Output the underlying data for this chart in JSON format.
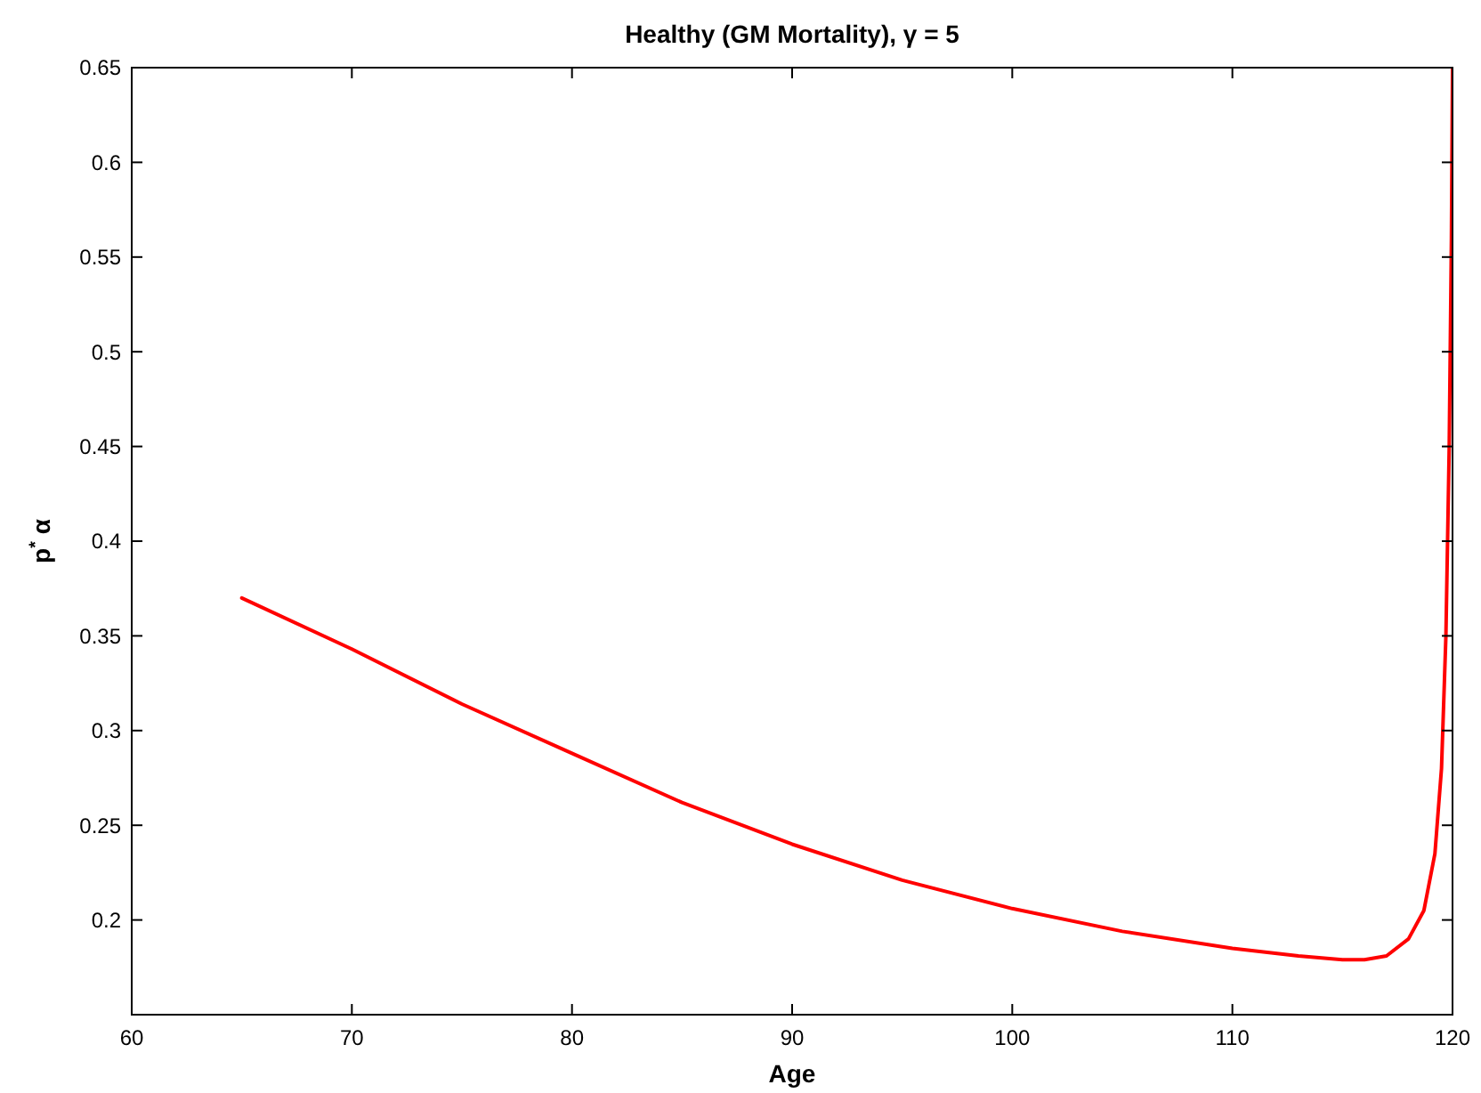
{
  "chart_data": {
    "type": "line",
    "title": "Healthy (GM Mortality), γ = 5",
    "xlabel": "Age",
    "ylabel": "p$^{*}$ α",
    "xlim": [
      60,
      120
    ],
    "xticks": [
      60,
      70,
      80,
      90,
      100,
      110,
      120
    ],
    "ylim": [
      0.15,
      0.65
    ],
    "yticks": [
      0.2,
      0.25,
      0.3,
      0.35,
      0.4,
      0.45,
      0.5,
      0.55,
      0.6,
      0.65
    ],
    "grid": false,
    "line_style": "solid",
    "marker": "none",
    "series": [
      {
        "color": "#ff0000",
        "x": [
          65,
          70,
          75,
          80,
          85,
          90,
          95,
          100,
          105,
          110,
          113,
          115,
          116,
          117,
          118,
          118.7,
          119.2,
          119.5,
          119.7,
          119.85,
          119.95,
          120
        ],
        "values": [
          0.37,
          0.343,
          0.314,
          0.288,
          0.262,
          0.24,
          0.221,
          0.206,
          0.194,
          0.185,
          0.181,
          0.179,
          0.179,
          0.181,
          0.19,
          0.205,
          0.235,
          0.28,
          0.35,
          0.45,
          0.56,
          0.65
        ]
      }
    ]
  }
}
